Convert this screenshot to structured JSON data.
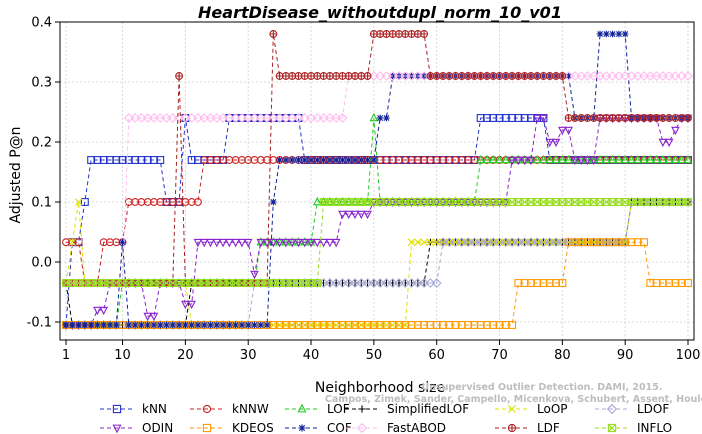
{
  "chart_data": {
    "type": "line",
    "title": "HeartDisease_withoutdupl_norm_10_v01",
    "xlabel": "Neighborhood size",
    "ylabel": "Adjusted P@n",
    "xlim": [
      1,
      100
    ],
    "ylim": [
      -0.13,
      0.4
    ],
    "x_ticks": [
      1,
      10,
      20,
      30,
      40,
      50,
      60,
      70,
      80,
      90,
      100
    ],
    "y_ticks": [
      -0.1,
      0.0,
      0.1,
      0.2,
      0.3,
      0.4
    ],
    "grid": true,
    "legend_position": "bottom",
    "watermark": "Campos, Zimek, Sander, Campello, Micenkova, Schubert, Assent, Houle",
    "watermark_line1": "Unsupervised Outlier Detection. DAMI, 2015.",
    "series": [
      {
        "name": "kNN",
        "color": "#2233cc",
        "marker": "square",
        "segments": [
          [
            1,
            -0.105
          ],
          [
            2,
            0.033
          ],
          [
            4,
            0.1
          ],
          [
            5,
            0.17
          ],
          [
            16,
            0.17
          ],
          [
            17,
            0.1
          ],
          [
            19,
            0.1
          ],
          [
            20,
            0.24
          ],
          [
            21,
            0.17
          ],
          [
            26,
            0.17
          ],
          [
            27,
            0.24
          ],
          [
            38,
            0.24
          ],
          [
            39,
            0.17
          ],
          [
            66,
            0.17
          ],
          [
            67,
            0.24
          ],
          [
            77,
            0.24
          ],
          [
            78,
            0.17
          ],
          [
            100,
            0.17
          ]
        ]
      },
      {
        "name": "kNNW",
        "color": "#cc2222",
        "marker": "circle",
        "segments": [
          [
            1,
            0.033
          ],
          [
            3,
            0.033
          ],
          [
            4,
            -0.035
          ],
          [
            6,
            -0.035
          ],
          [
            7,
            0.033
          ],
          [
            10,
            0.033
          ],
          [
            11,
            0.1
          ],
          [
            22,
            0.1
          ],
          [
            23,
            0.17
          ],
          [
            100,
            0.17
          ]
        ]
      },
      {
        "name": "LOF",
        "color": "#22cc22",
        "marker": "triangle",
        "segments": [
          [
            1,
            -0.105
          ],
          [
            9,
            -0.105
          ],
          [
            10,
            -0.035
          ],
          [
            31,
            -0.035
          ],
          [
            32,
            0.033
          ],
          [
            40,
            0.033
          ],
          [
            41,
            0.1
          ],
          [
            49,
            0.1
          ],
          [
            50,
            0.24
          ],
          [
            51,
            0.1
          ],
          [
            66,
            0.1
          ],
          [
            67,
            0.17
          ],
          [
            100,
            0.17
          ]
        ]
      },
      {
        "name": "SimplifiedLOF",
        "color": "#000000",
        "marker": "plus",
        "segments": [
          [
            1,
            -0.035
          ],
          [
            2,
            -0.105
          ],
          [
            20,
            -0.105
          ],
          [
            21,
            -0.035
          ],
          [
            58,
            -0.035
          ],
          [
            59,
            0.033
          ],
          [
            90,
            0.033
          ],
          [
            91,
            0.1
          ],
          [
            100,
            0.1
          ]
        ]
      },
      {
        "name": "LoOP",
        "color": "#e0e000",
        "marker": "x",
        "segments": [
          [
            1,
            -0.035
          ],
          [
            2,
            0.033
          ],
          [
            3,
            0.1
          ],
          [
            4,
            -0.035
          ],
          [
            20,
            -0.035
          ],
          [
            21,
            -0.105
          ],
          [
            55,
            -0.105
          ],
          [
            56,
            0.033
          ],
          [
            90,
            0.033
          ],
          [
            91,
            0.1
          ],
          [
            100,
            0.1
          ]
        ]
      },
      {
        "name": "LDOF",
        "color": "#a8a8d8",
        "marker": "diamond",
        "segments": [
          [
            1,
            -0.105
          ],
          [
            30,
            -0.105
          ],
          [
            31,
            -0.035
          ],
          [
            60,
            -0.035
          ],
          [
            61,
            0.033
          ],
          [
            90,
            0.033
          ],
          [
            91,
            0.1
          ],
          [
            100,
            0.1
          ]
        ]
      },
      {
        "name": "ODIN",
        "color": "#8822cc",
        "marker": "triangle-down",
        "segments": [
          [
            1,
            -0.105
          ],
          [
            5,
            -0.105
          ],
          [
            6,
            -0.08
          ],
          [
            8,
            -0.035
          ],
          [
            13,
            -0.035
          ],
          [
            14,
            -0.09
          ],
          [
            16,
            -0.035
          ],
          [
            19,
            -0.035
          ],
          [
            20,
            -0.07
          ],
          [
            22,
            0.033
          ],
          [
            30,
            0.033
          ],
          [
            31,
            -0.02
          ],
          [
            32,
            0.033
          ],
          [
            40,
            0.033
          ],
          [
            45,
            0.08
          ],
          [
            50,
            0.1
          ],
          [
            70,
            0.1
          ],
          [
            72,
            0.17
          ],
          [
            76,
            0.24
          ],
          [
            78,
            0.2
          ],
          [
            80,
            0.22
          ],
          [
            82,
            0.17
          ],
          [
            86,
            0.24
          ],
          [
            94,
            0.24
          ],
          [
            96,
            0.2
          ],
          [
            98,
            0.22
          ],
          [
            99,
            0.24
          ],
          [
            100,
            0.24
          ]
        ]
      },
      {
        "name": "KDEOS",
        "color": "#ff9900",
        "marker": "square",
        "segments": [
          [
            1,
            -0.105
          ],
          [
            72,
            -0.105
          ],
          [
            73,
            -0.035
          ],
          [
            80,
            -0.035
          ],
          [
            81,
            0.033
          ],
          [
            93,
            0.033
          ],
          [
            94,
            -0.035
          ],
          [
            100,
            -0.035
          ]
        ]
      },
      {
        "name": "COF",
        "color": "#112299",
        "marker": "asterisk",
        "segments": [
          [
            1,
            -0.105
          ],
          [
            9,
            -0.105
          ],
          [
            10,
            0.033
          ],
          [
            11,
            -0.105
          ],
          [
            33,
            -0.105
          ],
          [
            34,
            0.1
          ],
          [
            35,
            0.17
          ],
          [
            50,
            0.17
          ],
          [
            51,
            0.24
          ],
          [
            53,
            0.31
          ],
          [
            81,
            0.31
          ],
          [
            82,
            0.24
          ],
          [
            85,
            0.24
          ],
          [
            86,
            0.38
          ],
          [
            90,
            0.38
          ],
          [
            91,
            0.24
          ],
          [
            100,
            0.24
          ]
        ]
      },
      {
        "name": "FastABOD",
        "color": "#ffbbee",
        "marker": "diamond",
        "segments": [
          [
            1,
            -0.035
          ],
          [
            10,
            -0.035
          ],
          [
            11,
            0.24
          ],
          [
            45,
            0.24
          ],
          [
            46,
            0.31
          ],
          [
            100,
            0.31
          ]
        ]
      },
      {
        "name": "LDF",
        "color": "#aa2222",
        "marker": "circle-plus",
        "segments": [
          [
            1,
            -0.035
          ],
          [
            18,
            -0.035
          ],
          [
            19,
            0.31
          ],
          [
            20,
            -0.035
          ],
          [
            33,
            -0.035
          ],
          [
            34,
            0.38
          ],
          [
            35,
            0.31
          ],
          [
            49,
            0.31
          ],
          [
            50,
            0.38
          ],
          [
            58,
            0.38
          ],
          [
            59,
            0.31
          ],
          [
            80,
            0.31
          ],
          [
            81,
            0.24
          ],
          [
            100,
            0.24
          ]
        ]
      },
      {
        "name": "INFLO",
        "color": "#99dd22",
        "marker": "x-square",
        "segments": [
          [
            1,
            -0.035
          ],
          [
            41,
            -0.035
          ],
          [
            42,
            0.1
          ],
          [
            100,
            0.1
          ]
        ]
      }
    ]
  }
}
